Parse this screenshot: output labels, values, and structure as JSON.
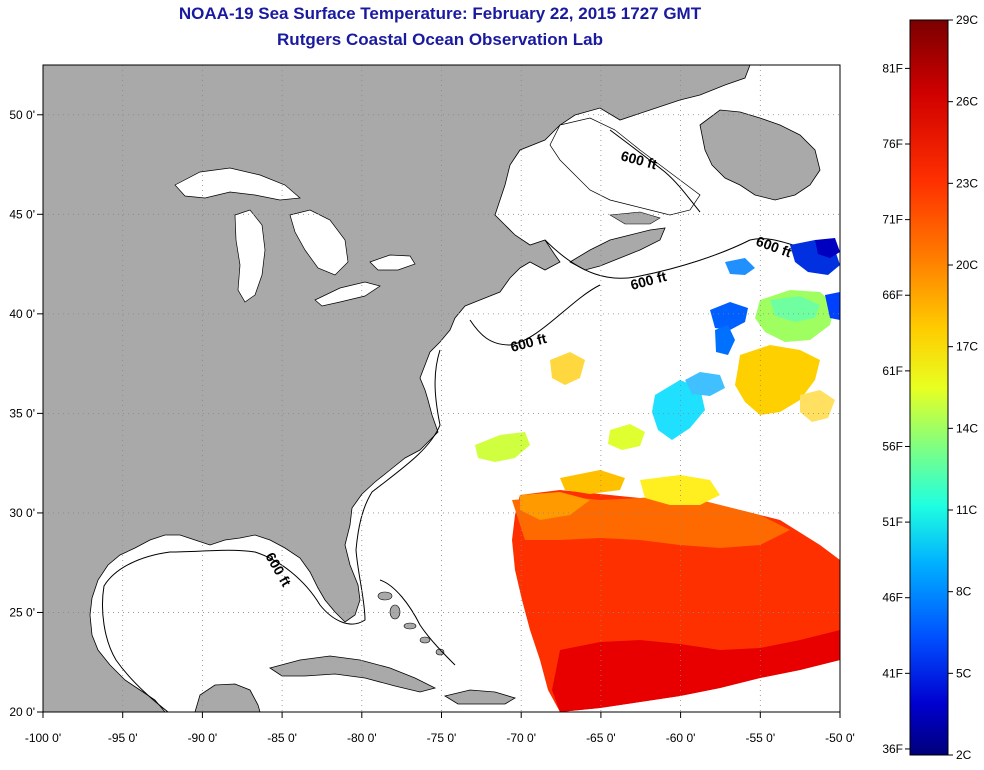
{
  "title": {
    "line1": "NOAA-19 Sea Surface Temperature:  February 22, 2015 1727 GMT",
    "line2": "Rutgers Coastal Ocean Observation Lab"
  },
  "map": {
    "lon_range": [
      -100,
      -50
    ],
    "lat_range": [
      20,
      52.5
    ],
    "lon_ticks": [
      "-100 0'",
      "-95 0'",
      "-90 0'",
      "-85 0'",
      "-80 0'",
      "-75 0'",
      "-70 0'",
      "-65 0'",
      "-60 0'",
      "-55 0'",
      "-50 0'"
    ],
    "lat_ticks": [
      "20 0'",
      "25 0'",
      "30 0'",
      "35 0'",
      "40 0'",
      "45 0'",
      "50 0'"
    ],
    "contour_labels": [
      "600 ft",
      "600 ft",
      "600 ft",
      "600 ft",
      "600 ft"
    ],
    "land_color": "#a9a9a9",
    "ocean_color": "#ffffff"
  },
  "colorbar": {
    "celsius_labels": [
      "29C",
      "26C",
      "23C",
      "20C",
      "17C",
      "14C",
      "11C",
      "8C",
      "5C",
      "2C"
    ],
    "fahrenheit_labels": [
      "81F",
      "76F",
      "71F",
      "66F",
      "61F",
      "56F",
      "51F",
      "46F",
      "41F",
      "36F"
    ],
    "colors": [
      "#7a0000",
      "#c80000",
      "#ff2000",
      "#ff7000",
      "#ffc000",
      "#ffff20",
      "#a0ff60",
      "#20ffd0",
      "#00b0ff",
      "#0050ff",
      "#0000c8",
      "#000080"
    ]
  }
}
